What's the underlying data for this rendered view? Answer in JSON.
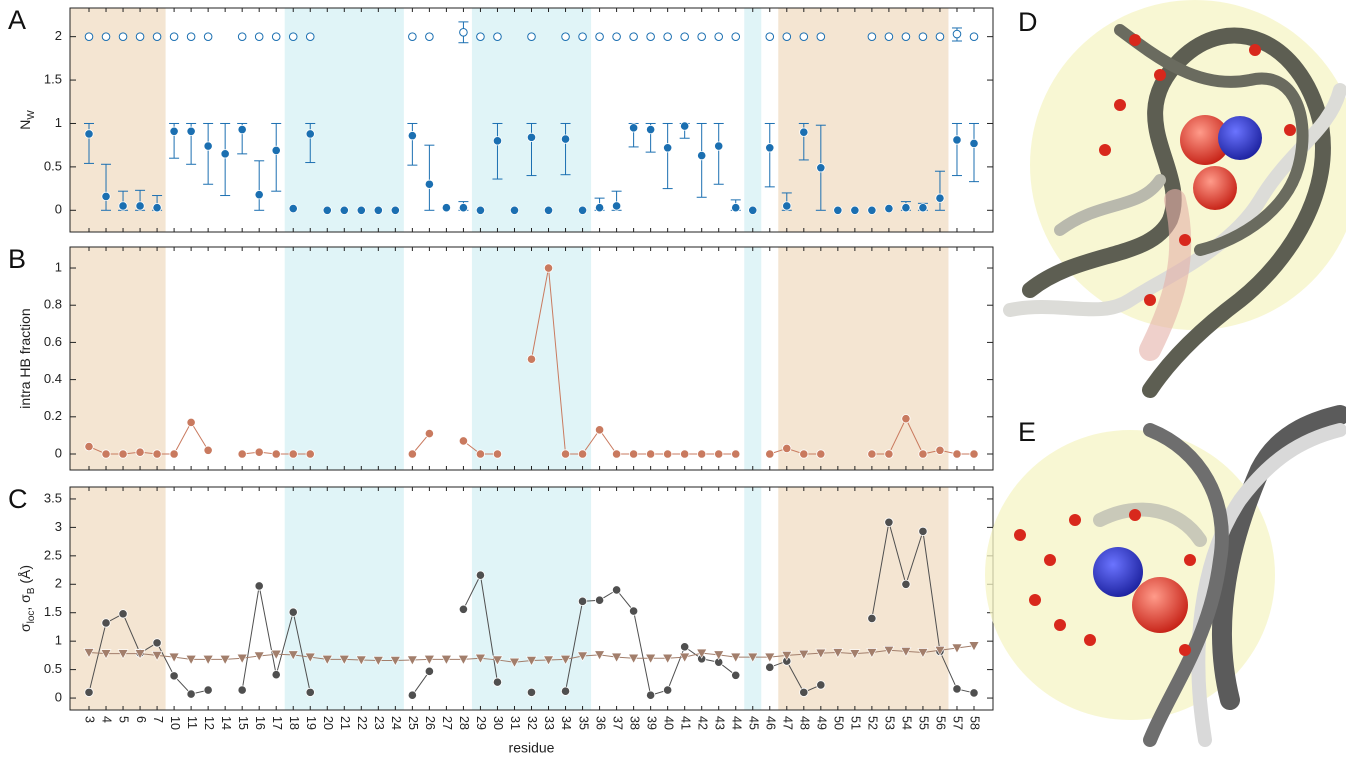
{
  "chart_data": [
    {
      "type": "errorbar",
      "label": "A",
      "ylabel": [
        "N",
        "W"
      ],
      "ylabel_sub": [
        false,
        true
      ],
      "ylim": [
        -0.25,
        2.33
      ],
      "yticks": [
        0,
        0.5,
        1,
        1.5,
        2
      ],
      "series": [
        {
          "color": "#1b6fb1",
          "marker": "filled",
          "values": [
            0.88,
            0.16,
            0.05,
            0.05,
            0.03,
            0.91,
            0.91,
            0.74,
            0.65,
            0.93,
            0.18,
            0.69,
            0.02,
            0.88,
            0,
            0,
            0,
            0,
            0,
            0.86,
            0.3,
            0.03,
            0.03,
            0,
            0.8,
            0,
            0.84,
            0,
            0.82,
            0,
            0.03,
            0.05,
            0.95,
            0.93,
            0.72,
            0.97,
            0.63,
            0.74,
            0.03,
            0,
            0.72,
            0.05,
            0.9,
            0.49,
            0,
            0,
            0,
            0.02,
            0.03,
            0.03,
            0.14,
            0.81,
            0.77
          ],
          "lower": [
            0.54,
            0,
            0,
            0,
            0,
            0.6,
            0.53,
            0.3,
            0.17,
            0.65,
            0,
            0.22,
            null,
            0.55,
            null,
            null,
            null,
            null,
            null,
            0.52,
            0,
            null,
            0,
            null,
            0.36,
            null,
            0.4,
            null,
            0.41,
            null,
            0,
            0,
            0.73,
            0.67,
            0.25,
            0.83,
            0.15,
            0.3,
            0,
            null,
            0.27,
            0,
            0.58,
            0,
            null,
            null,
            null,
            null,
            0,
            0,
            0,
            0.4,
            0.33
          ],
          "upper": [
            1,
            0.53,
            0.22,
            0.23,
            0.17,
            1,
            1,
            1,
            1,
            1,
            0.57,
            1,
            null,
            1,
            null,
            null,
            null,
            null,
            null,
            1,
            0.75,
            null,
            0.1,
            null,
            1,
            null,
            1,
            null,
            1,
            null,
            0.14,
            0.22,
            1,
            1,
            1,
            1,
            1,
            1,
            0.12,
            null,
            1,
            0.2,
            1,
            0.98,
            null,
            null,
            null,
            null,
            0.1,
            0.08,
            0.45,
            1,
            1
          ]
        },
        {
          "color": "#1b6fb1",
          "marker": "open",
          "values": [
            2,
            2,
            2,
            2,
            2,
            2,
            2,
            2,
            null,
            2,
            2,
            2,
            2,
            2,
            null,
            null,
            null,
            null,
            null,
            2,
            2,
            null,
            2.05,
            2,
            2,
            null,
            2,
            null,
            2,
            2,
            2,
            2,
            2,
            2,
            2,
            2,
            2,
            2,
            2,
            null,
            2,
            2,
            2,
            2,
            null,
            null,
            2,
            2,
            2,
            2,
            2,
            2.03,
            2
          ],
          "lower": [
            null,
            null,
            null,
            null,
            null,
            null,
            null,
            null,
            null,
            null,
            null,
            null,
            null,
            null,
            null,
            null,
            null,
            null,
            null,
            null,
            null,
            null,
            1.93,
            null,
            null,
            null,
            null,
            null,
            null,
            null,
            null,
            null,
            null,
            null,
            null,
            null,
            null,
            null,
            null,
            null,
            null,
            null,
            null,
            null,
            null,
            null,
            null,
            null,
            null,
            null,
            null,
            1.95,
            null
          ],
          "upper": [
            null,
            null,
            null,
            null,
            null,
            null,
            null,
            null,
            null,
            null,
            null,
            null,
            null,
            null,
            null,
            null,
            null,
            null,
            null,
            null,
            null,
            null,
            2.17,
            null,
            null,
            null,
            null,
            null,
            null,
            null,
            null,
            null,
            null,
            null,
            null,
            null,
            null,
            null,
            null,
            null,
            null,
            null,
            null,
            null,
            null,
            null,
            null,
            null,
            null,
            null,
            null,
            2.1,
            null
          ]
        }
      ]
    },
    {
      "type": "line",
      "label": "B",
      "ylabel": [
        "intra HB fraction"
      ],
      "ylabel_sub": [
        false
      ],
      "ylim": [
        -0.086,
        1.113
      ],
      "yticks": [
        0,
        0.2,
        0.4,
        0.6,
        0.8,
        1
      ],
      "series": [
        {
          "color": "#c97a5f",
          "marker": "circle",
          "values": [
            0.04,
            0,
            0,
            0.01,
            0,
            0,
            0.17,
            0.02,
            null,
            0,
            0.01,
            0,
            0,
            0,
            null,
            null,
            null,
            null,
            null,
            0,
            0.11,
            null,
            0.07,
            0,
            0,
            null,
            0.51,
            1,
            0,
            0,
            0.13,
            0,
            0,
            0,
            0,
            0,
            0,
            0,
            0,
            null,
            0,
            0.03,
            0,
            0,
            null,
            null,
            0,
            0,
            0.19,
            0,
            0.02,
            0,
            0
          ]
        }
      ]
    },
    {
      "type": "line",
      "label": "C",
      "ylabel": [
        "σ",
        "loc",
        ", σ",
        "B",
        " (Å)"
      ],
      "ylabel_sub": [
        false,
        true,
        false,
        true,
        false
      ],
      "xlabel": "residue",
      "categories": [
        "3",
        "4",
        "5",
        "6",
        "7",
        "10",
        "11",
        "12",
        "14",
        "15",
        "16",
        "17",
        "18",
        "19",
        "20",
        "21",
        "22",
        "23",
        "24",
        "25",
        "26",
        "27",
        "28",
        "29",
        "30",
        "31",
        "32",
        "33",
        "34",
        "35",
        "36",
        "37",
        "38",
        "39",
        "40",
        "41",
        "42",
        "43",
        "44",
        "45",
        "46",
        "47",
        "48",
        "49",
        "50",
        "51",
        "52",
        "53",
        "54",
        "55",
        "56",
        "57",
        "58"
      ],
      "ylim": [
        -0.21,
        3.71
      ],
      "yticks": [
        0,
        0.5,
        1,
        1.5,
        2,
        2.5,
        3,
        3.5
      ],
      "series": [
        {
          "color": "#4f4f4f",
          "marker": "circle",
          "values": [
            0.1,
            1.32,
            1.48,
            0.79,
            0.97,
            0.39,
            0.07,
            0.14,
            null,
            0.14,
            1.97,
            0.41,
            1.51,
            0.1,
            null,
            null,
            null,
            null,
            null,
            0.05,
            0.47,
            null,
            1.56,
            2.16,
            0.28,
            null,
            0.1,
            null,
            0.12,
            1.7,
            1.72,
            1.9,
            1.53,
            0.05,
            0.14,
            0.9,
            0.69,
            0.63,
            0.4,
            null,
            0.54,
            0.65,
            0.1,
            0.23,
            null,
            null,
            1.4,
            3.09,
            2,
            2.93,
            0.82,
            0.16,
            0.09
          ]
        },
        {
          "color": "#a27e6b",
          "marker": "triangle",
          "values": [
            0.8,
            0.78,
            0.78,
            0.78,
            0.75,
            0.72,
            0.68,
            0.68,
            0.68,
            0.7,
            0.74,
            0.77,
            0.76,
            0.72,
            0.68,
            0.68,
            0.67,
            0.66,
            0.66,
            0.67,
            0.68,
            0.68,
            0.68,
            0.7,
            0.67,
            0.63,
            0.66,
            0.67,
            0.68,
            0.74,
            0.76,
            0.72,
            0.7,
            0.7,
            0.7,
            0.72,
            0.79,
            0.76,
            0.72,
            0.72,
            0.72,
            0.75,
            0.77,
            0.79,
            0.8,
            0.78,
            0.8,
            0.84,
            0.82,
            0.8,
            0.84,
            0.88,
            0.92
          ]
        }
      ]
    }
  ],
  "bands": [
    {
      "from": "3",
      "to": "7",
      "color": "#f4e5d2"
    },
    {
      "from": "18",
      "to": "24",
      "color": "#e0f4f7"
    },
    {
      "from": "29",
      "to": "35",
      "color": "#e0f4f7"
    },
    {
      "from": "45",
      "to": "45",
      "color": "#e0f4f7"
    },
    {
      "from": "47",
      "to": "56",
      "color": "#f4e5d2"
    }
  ],
  "images": [
    {
      "label": "D"
    },
    {
      "label": "E"
    }
  ]
}
